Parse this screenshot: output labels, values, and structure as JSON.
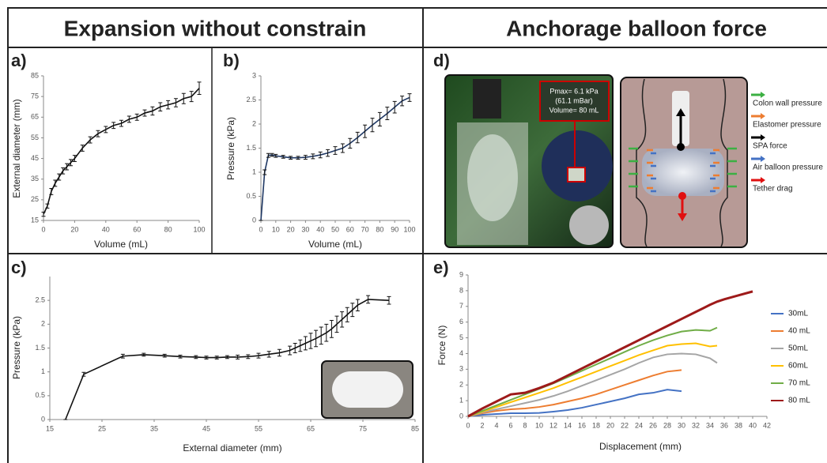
{
  "headers": [
    "Expansion without constrain",
    "Anchorage balloon force"
  ],
  "panel_labels": [
    "a)",
    "b)",
    "c)",
    "d)",
    "e)"
  ],
  "chart_data": [
    {
      "type": "line",
      "x_label": "Volume (mL)",
      "y_label": "External diameter (mm)",
      "color": "#111111",
      "x": [
        0,
        2.5,
        5,
        7.5,
        10,
        12.5,
        15,
        17.5,
        20,
        25,
        30,
        35,
        40,
        45,
        50,
        55,
        60,
        65,
        70,
        75,
        80,
        85,
        90,
        95,
        100
      ],
      "values": [
        18,
        22,
        29,
        33,
        36,
        39,
        41,
        43,
        45,
        50,
        54,
        57,
        59,
        61,
        62,
        64,
        65,
        67,
        68,
        70,
        71,
        72,
        74,
        75,
        79
      ],
      "errors": [
        1,
        1,
        1.5,
        1.5,
        1.5,
        1.5,
        1.5,
        1.5,
        1.5,
        1.5,
        1.5,
        1.5,
        1.5,
        1.5,
        1.5,
        1.5,
        1.5,
        1.5,
        2,
        2,
        2,
        2,
        2.5,
        2.5,
        3
      ],
      "xlim": [
        0,
        100
      ],
      "xticks": [
        0,
        20,
        40,
        60,
        80,
        100
      ],
      "ylim": [
        15,
        85
      ],
      "yticks": [
        15,
        25,
        35,
        45,
        55,
        65,
        75,
        85
      ]
    },
    {
      "type": "line",
      "x_label": "Volume (mL)",
      "y_label": "Pressure (kPa)",
      "color": "#1f3864",
      "x": [
        0,
        2.5,
        5,
        7.5,
        10,
        15,
        20,
        25,
        30,
        35,
        40,
        45,
        50,
        55,
        60,
        65,
        70,
        75,
        80,
        85,
        90,
        95,
        100
      ],
      "values": [
        0,
        1.0,
        1.35,
        1.36,
        1.34,
        1.32,
        1.3,
        1.3,
        1.31,
        1.33,
        1.36,
        1.4,
        1.45,
        1.5,
        1.6,
        1.72,
        1.85,
        1.98,
        2.1,
        2.22,
        2.35,
        2.48,
        2.55
      ],
      "errors": [
        0,
        0.05,
        0.04,
        0.03,
        0.03,
        0.03,
        0.03,
        0.03,
        0.04,
        0.05,
        0.06,
        0.07,
        0.08,
        0.09,
        0.1,
        0.11,
        0.13,
        0.14,
        0.14,
        0.13,
        0.12,
        0.1,
        0.08
      ],
      "xlim": [
        0,
        100
      ],
      "xticks": [
        0,
        10,
        20,
        30,
        40,
        50,
        60,
        70,
        80,
        90,
        100
      ],
      "ylim": [
        0,
        3
      ],
      "yticks": [
        0,
        0.5,
        1,
        1.5,
        2,
        2.5,
        3
      ]
    },
    {
      "type": "line",
      "x_label": "External diameter  (mm)",
      "y_label": "Pressure (kPa)",
      "color": "#111111",
      "x": [
        18,
        21.5,
        29,
        33,
        37,
        40,
        43,
        45,
        47,
        49,
        51,
        53,
        55,
        57,
        59,
        61,
        62,
        63,
        64,
        65,
        66,
        67,
        68,
        69,
        70,
        71,
        72,
        73,
        74,
        76,
        80
      ],
      "values": [
        0,
        0.95,
        1.33,
        1.36,
        1.34,
        1.32,
        1.31,
        1.3,
        1.3,
        1.31,
        1.31,
        1.32,
        1.34,
        1.37,
        1.4,
        1.45,
        1.5,
        1.55,
        1.6,
        1.65,
        1.7,
        1.76,
        1.82,
        1.9,
        2.0,
        2.1,
        2.2,
        2.3,
        2.4,
        2.52,
        2.5
      ],
      "errors": [
        0,
        0.04,
        0.04,
        0.03,
        0.03,
        0.03,
        0.03,
        0.03,
        0.03,
        0.03,
        0.04,
        0.04,
        0.05,
        0.06,
        0.07,
        0.09,
        0.1,
        0.12,
        0.14,
        0.16,
        0.17,
        0.18,
        0.18,
        0.18,
        0.17,
        0.16,
        0.15,
        0.14,
        0.12,
        0.08,
        0.08
      ],
      "xlim": [
        15,
        85
      ],
      "xticks": [
        15,
        25,
        35,
        45,
        55,
        65,
        75,
        85
      ],
      "ylim": [
        0,
        3
      ],
      "yticks": [
        0,
        0.5,
        1,
        1.5,
        2,
        2.5
      ]
    },
    {
      "type": "multiline",
      "x_label": "Displacement (mm)",
      "y_label": "Force (N)",
      "legend": "right",
      "x": [
        0,
        2,
        4,
        6,
        8,
        10,
        12,
        14,
        16,
        18,
        20,
        22,
        24,
        26,
        28,
        30,
        32,
        34,
        35,
        36,
        38,
        40
      ],
      "series": [
        {
          "name": "30mL",
          "color": "#4472c4",
          "values": [
            0,
            0.1,
            0.15,
            0.2,
            0.2,
            0.22,
            0.3,
            0.4,
            0.55,
            0.75,
            0.95,
            1.15,
            1.4,
            1.5,
            1.7,
            1.6,
            null,
            null,
            null,
            null,
            null,
            null
          ]
        },
        {
          "name": "40 mL",
          "color": "#ed7d31",
          "values": [
            0,
            0.2,
            0.35,
            0.45,
            0.5,
            0.6,
            0.75,
            0.95,
            1.15,
            1.4,
            1.7,
            2.0,
            2.3,
            2.6,
            2.85,
            2.95,
            null,
            null,
            null,
            null,
            null,
            null
          ]
        },
        {
          "name": "50mL",
          "color": "#a5a5a5",
          "values": [
            0,
            0.25,
            0.45,
            0.65,
            0.85,
            1.05,
            1.3,
            1.6,
            1.95,
            2.3,
            2.65,
            3.0,
            3.4,
            3.75,
            3.95,
            4.0,
            3.95,
            3.7,
            3.4,
            null,
            null,
            null
          ]
        },
        {
          "name": "60mL",
          "color": "#ffc000",
          "values": [
            0,
            0.3,
            0.6,
            0.9,
            1.2,
            1.5,
            1.8,
            2.15,
            2.5,
            2.85,
            3.2,
            3.55,
            3.9,
            4.2,
            4.5,
            4.6,
            4.65,
            4.45,
            4.5,
            null,
            null,
            null
          ]
        },
        {
          "name": "70 mL",
          "color": "#70ad47",
          "values": [
            0,
            0.35,
            0.7,
            1.05,
            1.4,
            1.75,
            2.1,
            2.5,
            2.9,
            3.3,
            3.7,
            4.1,
            4.5,
            4.85,
            5.15,
            5.4,
            5.5,
            5.45,
            5.65,
            null,
            null,
            null
          ]
        },
        {
          "name": "80 mL",
          "color": "#9e1a1a",
          "values": [
            0,
            0.5,
            0.95,
            1.4,
            1.5,
            1.8,
            2.15,
            2.6,
            3.05,
            3.5,
            3.95,
            4.4,
            4.85,
            5.3,
            5.75,
            6.2,
            6.65,
            7.1,
            7.3,
            7.45,
            7.7,
            7.95
          ]
        }
      ],
      "xlim": [
        0,
        42
      ],
      "xticks": [
        0,
        2,
        4,
        6,
        8,
        10,
        12,
        14,
        16,
        18,
        20,
        22,
        24,
        26,
        28,
        30,
        32,
        34,
        36,
        38,
        40,
        42
      ],
      "ylim": [
        0,
        9
      ],
      "yticks": [
        0,
        1,
        2,
        3,
        4,
        5,
        6,
        7,
        8,
        9
      ]
    }
  ],
  "photo": {
    "annotation": [
      "Pmax= 6.1 kPa",
      "(61.1 mBar)",
      "Volume= 80 mL"
    ],
    "legend": [
      {
        "name": "Colon wall pressure",
        "color": "#3cb043"
      },
      {
        "name": "Elastomer pressure",
        "color": "#ed7d31"
      },
      {
        "name": "SPA force",
        "color": "#000000"
      },
      {
        "name": "Air balloon pressure",
        "color": "#4472c4"
      },
      {
        "name": "Tether drag",
        "color": "#e01010"
      }
    ]
  }
}
